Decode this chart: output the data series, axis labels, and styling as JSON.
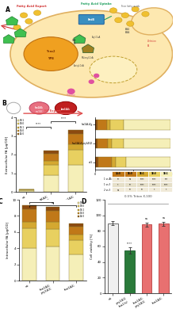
{
  "panel_B_stacked_bar": {
    "categories": [
      "wt",
      "faa1Δ4;\npry1Δ3;",
      "faa1Δ4;"
    ],
    "fa_types": [
      "18:1",
      "18:0",
      "16:1",
      "16:0",
      "14:0"
    ],
    "colors": [
      "#f5efb8",
      "#e8d060",
      "#d4a830",
      "#c07818",
      "#8b4a10"
    ],
    "values": [
      [
        0.07,
        0.03,
        0.01,
        0.02,
        0.01
      ],
      [
        0.9,
        0.55,
        0.22,
        0.38,
        0.17
      ],
      [
        1.45,
        0.8,
        0.32,
        0.52,
        0.22
      ]
    ],
    "ylabel": "Extracellular FA [µg/OD]",
    "ylim": [
      0,
      4
    ],
    "yticks": [
      0,
      1,
      2,
      3,
      4
    ],
    "sig_pairs": [
      [
        0,
        1,
        3.5,
        "****"
      ],
      [
        1,
        2,
        3.8,
        "****"
      ]
    ]
  },
  "panel_B_composition": {
    "row_labels": [
      "wt",
      "faa1Δ4;Δ pry1Δ3;",
      "faa1Δ4;Δ"
    ],
    "row_nums": [
      "1",
      "2",
      "3"
    ],
    "fa_types": [
      "14:0",
      "16:0",
      "16:1",
      "18:0",
      "18:1"
    ],
    "colors": [
      "#8b4a10",
      "#c07818",
      "#d4a830",
      "#e8d060",
      "#f5efb8"
    ],
    "values": [
      [
        4,
        18,
        5,
        14,
        59
      ],
      [
        3,
        14,
        5,
        16,
        62
      ],
      [
        3,
        13,
        4,
        18,
        62
      ]
    ],
    "xlabel": "Extracellular FA Composition [%]"
  },
  "panel_B_table": {
    "row_labels": [
      "1 vs 2",
      "1 vs 3",
      "2 vs 3"
    ],
    "col_labels": [
      "14:0",
      "16:0",
      "16:1",
      "18:0",
      "18:1"
    ],
    "col_colors": [
      "#c07818",
      "#c07818",
      "#d4a830",
      "#e8d060",
      "#f5efb8"
    ],
    "data": [
      [
        "**",
        "ns",
        "****",
        "****",
        "***"
      ],
      [
        "*",
        "**",
        "****",
        "****",
        "****"
      ],
      [
        "ns",
        "**",
        "**",
        "*",
        "*"
      ]
    ]
  },
  "panel_C_stacked_bar": {
    "categories": [
      "wt",
      "faa1Δ4;\npry1Δ3;",
      "faa1Δ4;"
    ],
    "fa_types": [
      "18:1",
      "18:0",
      "16:1",
      "16:0",
      "14:0"
    ],
    "colors": [
      "#f5efb8",
      "#e8d060",
      "#d4a830",
      "#c07818",
      "#8b4a10"
    ],
    "values": [
      [
        4.0,
        2.5,
        0.8,
        1.5,
        0.5
      ],
      [
        4.2,
        2.2,
        0.9,
        1.3,
        0.5
      ],
      [
        3.2,
        1.8,
        0.7,
        1.0,
        0.4
      ]
    ],
    "ylabel": "Intracellular FA [µg/OD]",
    "ylim": [
      0,
      10
    ],
    "yticks": [
      0,
      2,
      4,
      6,
      8,
      10
    ],
    "sig_pairs": [
      [
        0,
        2,
        9.3,
        "ns"
      ],
      [
        0,
        1,
        9.7,
        "ns"
      ]
    ]
  },
  "panel_D_bar": {
    "categories": [
      "wt",
      "pry1Δ3;\nfaa1(s)",
      "faa1Δ4;\npry1Δ3;",
      "faa1Δ4;"
    ],
    "values": [
      90,
      55,
      88,
      89
    ],
    "errors": [
      3,
      4,
      3,
      3
    ],
    "colors": [
      "#f0f0f0",
      "#2a7a3a",
      "#e87070",
      "#e87070"
    ],
    "edge_colors": [
      "#555555",
      "#1a5a2a",
      "#b84040",
      "#b84040"
    ],
    "ylabel": "Cell viability [%]",
    "ylim": [
      0,
      120
    ],
    "yticks": [
      0,
      20,
      40,
      60,
      80,
      100,
      120
    ],
    "title": "0.5% Triton X-100",
    "sig_pairs": [
      [
        0,
        1,
        "****"
      ],
      [
        0,
        2,
        "ns"
      ],
      [
        0,
        3,
        "ns"
      ]
    ]
  },
  "bg_color": "#ffffff"
}
